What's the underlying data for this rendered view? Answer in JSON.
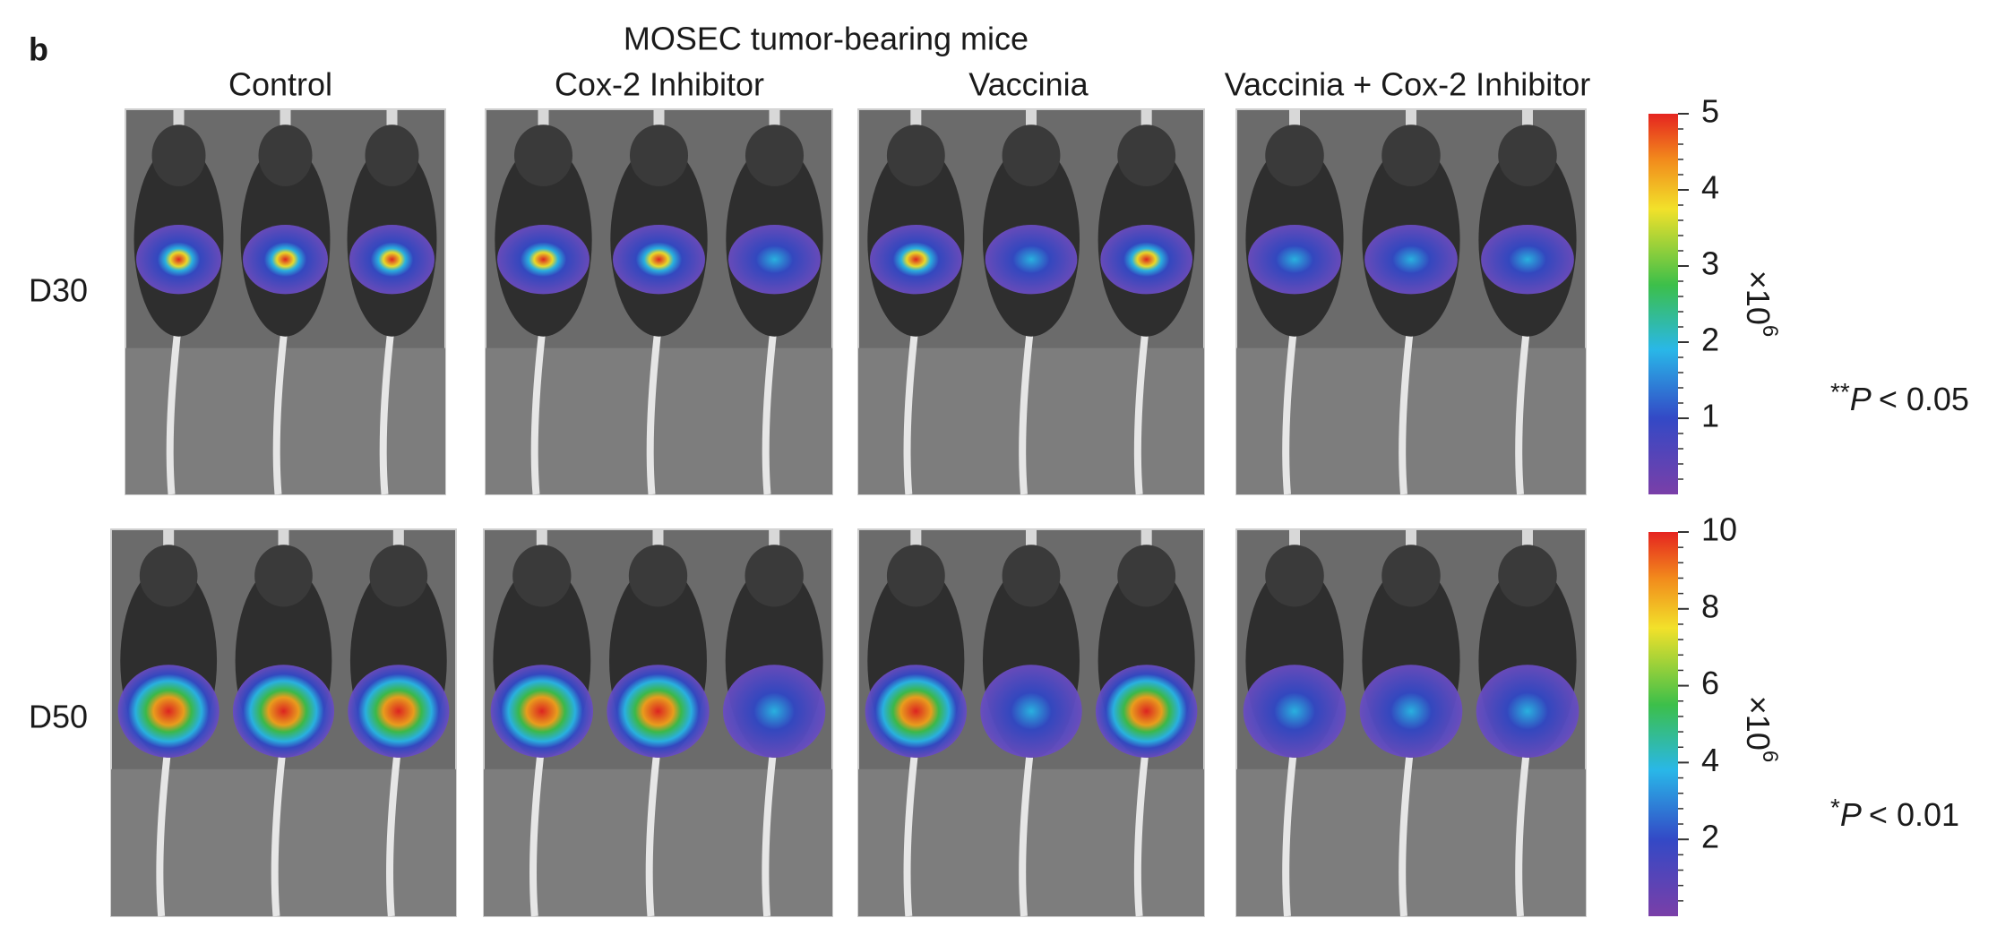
{
  "panel_label": "b",
  "title": "MOSEC tumor-bearing mice",
  "columns": [
    "Control",
    "Cox-2 Inhibitor",
    "Vaccinia",
    "Vaccinia + Cox-2 Inhibitor"
  ],
  "rows": [
    {
      "label": "D30",
      "colorbar": {
        "lim": [
          0,
          5
        ],
        "ticks": [
          1,
          2,
          3,
          4,
          5
        ],
        "multiplier": "×10",
        "exponent": "6"
      },
      "significance": {
        "stars": "**",
        "symbol": "P",
        "relation": "< 0.05"
      }
    },
    {
      "label": "D50",
      "colorbar": {
        "lim": [
          0,
          10
        ],
        "ticks": [
          2,
          4,
          6,
          8,
          10
        ],
        "multiplier": "×10",
        "exponent": "6"
      },
      "significance": {
        "stars": "*",
        "symbol": "P",
        "relation": "< 0.01"
      }
    }
  ]
}
